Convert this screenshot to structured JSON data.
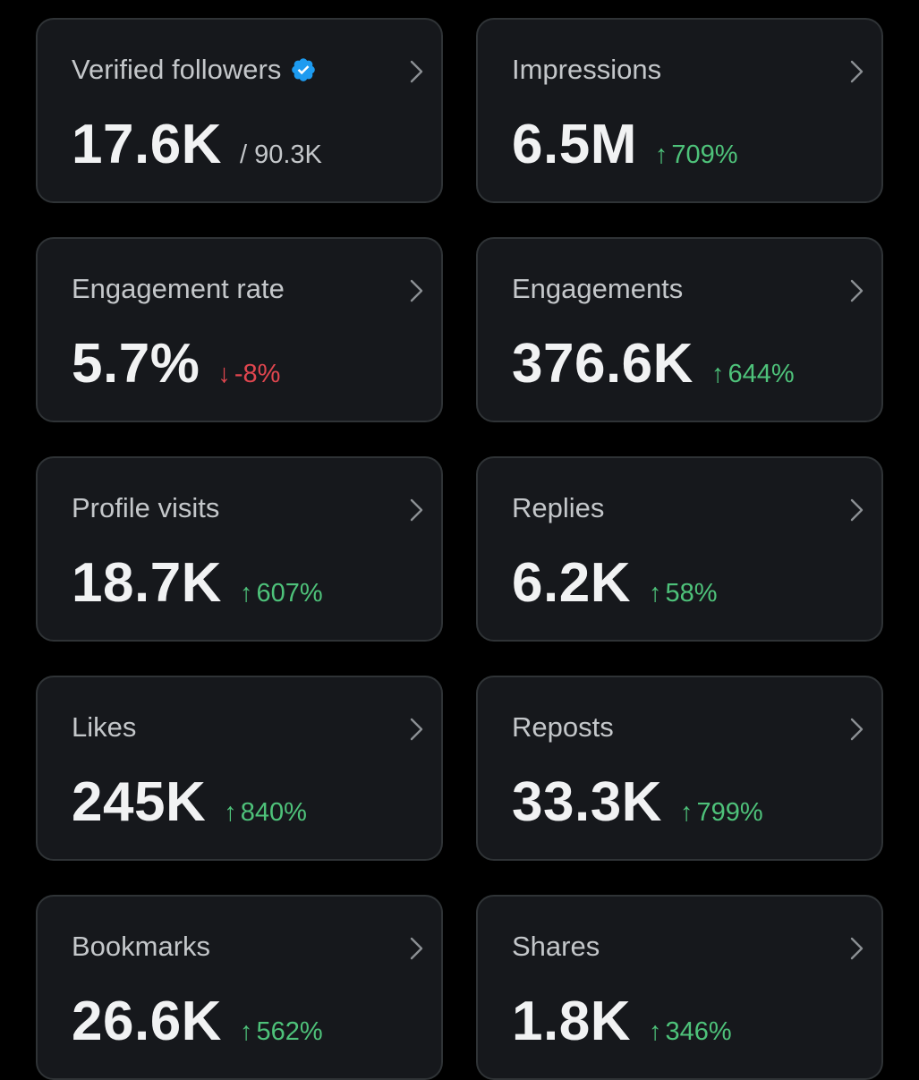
{
  "colors": {
    "background": "#000000",
    "card_background": "#16181c",
    "card_border": "#2f3336",
    "positive": "#4ec27a",
    "negative": "#e0464f",
    "verified_badge": "#1d9bf0"
  },
  "cards": [
    {
      "title": "Verified followers",
      "value": "17.6K",
      "suffix": "/ 90.3K",
      "change": "",
      "direction": "",
      "badge_icon": "verified-badge-icon"
    },
    {
      "title": "Impressions",
      "value": "6.5M",
      "suffix": "",
      "change": "709%",
      "direction": "up"
    },
    {
      "title": "Engagement rate",
      "value": "5.7%",
      "suffix": "",
      "change": "-8%",
      "direction": "down"
    },
    {
      "title": "Engagements",
      "value": "376.6K",
      "suffix": "",
      "change": "644%",
      "direction": "up"
    },
    {
      "title": "Profile visits",
      "value": "18.7K",
      "suffix": "",
      "change": "607%",
      "direction": "up"
    },
    {
      "title": "Replies",
      "value": "6.2K",
      "suffix": "",
      "change": "58%",
      "direction": "up"
    },
    {
      "title": "Likes",
      "value": "245K",
      "suffix": "",
      "change": "840%",
      "direction": "up"
    },
    {
      "title": "Reposts",
      "value": "33.3K",
      "suffix": "",
      "change": "799%",
      "direction": "up"
    },
    {
      "title": "Bookmarks",
      "value": "26.6K",
      "suffix": "",
      "change": "562%",
      "direction": "up"
    },
    {
      "title": "Shares",
      "value": "1.8K",
      "suffix": "",
      "change": "346%",
      "direction": "up"
    }
  ],
  "icons": {
    "arrow_up": "↑",
    "arrow_down": "↓",
    "chevron": "chevron-right-icon"
  }
}
